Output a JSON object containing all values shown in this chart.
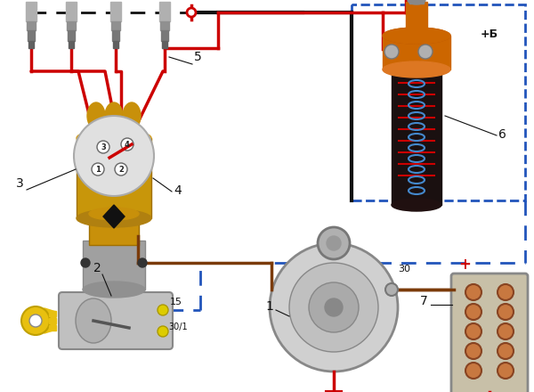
{
  "bg_color": "#ffffff",
  "wire_red": "#cc0000",
  "wire_black": "#111111",
  "wire_brown": "#7B3B0A",
  "wire_blue_dash": "#2255bb",
  "org": "#cc6600",
  "gld": "#c8960a",
  "gry": "#999999"
}
